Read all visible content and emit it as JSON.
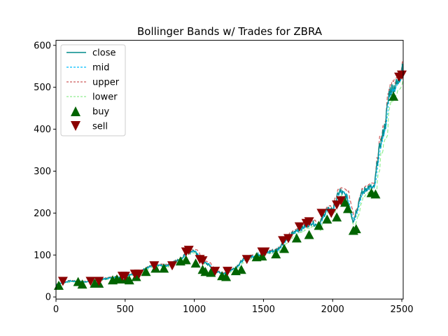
{
  "chart_data": {
    "type": "line",
    "title": "Bollinger Bands w/ Trades for ZBRA",
    "xlabel": "",
    "ylabel": "",
    "xlim": [
      0,
      2510
    ],
    "ylim": [
      -5,
      612
    ],
    "x_ticks": [
      0,
      500,
      1000,
      1500,
      2000,
      2500
    ],
    "y_ticks": [
      0,
      100,
      200,
      300,
      400,
      500,
      600
    ],
    "legend_position": "upper-left",
    "anchors": [
      [
        0,
        30
      ],
      [
        100,
        38
      ],
      [
        200,
        36
      ],
      [
        300,
        40
      ],
      [
        400,
        46
      ],
      [
        500,
        50
      ],
      [
        600,
        60
      ],
      [
        700,
        75
      ],
      [
        800,
        75
      ],
      [
        900,
        90
      ],
      [
        950,
        108
      ],
      [
        1000,
        110
      ],
      [
        1050,
        85
      ],
      [
        1100,
        78
      ],
      [
        1150,
        62
      ],
      [
        1200,
        55
      ],
      [
        1250,
        62
      ],
      [
        1300,
        70
      ],
      [
        1350,
        88
      ],
      [
        1400,
        95
      ],
      [
        1450,
        100
      ],
      [
        1500,
        104
      ],
      [
        1550,
        108
      ],
      [
        1600,
        112
      ],
      [
        1650,
        132
      ],
      [
        1700,
        148
      ],
      [
        1750,
        160
      ],
      [
        1800,
        168
      ],
      [
        1850,
        178
      ],
      [
        1900,
        168
      ],
      [
        1950,
        205
      ],
      [
        2000,
        210
      ],
      [
        2050,
        252
      ],
      [
        2100,
        240
      ],
      [
        2150,
        180
      ],
      [
        2200,
        240
      ],
      [
        2250,
        262
      ],
      [
        2300,
        258
      ],
      [
        2330,
        340
      ],
      [
        2350,
        370
      ],
      [
        2380,
        410
      ],
      [
        2410,
        490
      ],
      [
        2440,
        500
      ],
      [
        2470,
        508
      ],
      [
        2500,
        548
      ],
      [
        2510,
        560
      ]
    ],
    "series": [
      {
        "name": "close",
        "color": "#008b8b",
        "style": "solid"
      },
      {
        "name": "mid",
        "color": "#00bfff",
        "style": "dashed"
      },
      {
        "name": "upper",
        "color": "#cd5c5c",
        "style": "dashed"
      },
      {
        "name": "lower",
        "color": "#90ee90",
        "style": "dashed"
      }
    ],
    "buy_color": "#006400",
    "sell_color": "#8b0000",
    "buy_trades": [
      [
        20,
        27
      ],
      [
        160,
        36
      ],
      [
        190,
        30
      ],
      [
        280,
        32
      ],
      [
        310,
        32
      ],
      [
        410,
        40
      ],
      [
        440,
        42
      ],
      [
        470,
        42
      ],
      [
        510,
        42
      ],
      [
        530,
        40
      ],
      [
        580,
        48
      ],
      [
        650,
        60
      ],
      [
        720,
        68
      ],
      [
        780,
        68
      ],
      [
        900,
        85
      ],
      [
        940,
        88
      ],
      [
        1010,
        80
      ],
      [
        1060,
        65
      ],
      [
        1080,
        60
      ],
      [
        1120,
        58
      ],
      [
        1200,
        50
      ],
      [
        1230,
        48
      ],
      [
        1300,
        62
      ],
      [
        1340,
        65
      ],
      [
        1450,
        95
      ],
      [
        1490,
        97
      ],
      [
        1590,
        102
      ],
      [
        1650,
        115
      ],
      [
        1740,
        140
      ],
      [
        1830,
        148
      ],
      [
        1900,
        170
      ],
      [
        1960,
        185
      ],
      [
        2030,
        190
      ],
      [
        2090,
        225
      ],
      [
        2110,
        210
      ],
      [
        2150,
        158
      ],
      [
        2170,
        162
      ],
      [
        2280,
        248
      ],
      [
        2310,
        245
      ],
      [
        2440,
        478
      ]
    ],
    "sell_trades": [
      [
        50,
        38
      ],
      [
        250,
        38
      ],
      [
        310,
        38
      ],
      [
        480,
        50
      ],
      [
        500,
        50
      ],
      [
        570,
        55
      ],
      [
        600,
        55
      ],
      [
        710,
        75
      ],
      [
        840,
        75
      ],
      [
        940,
        108
      ],
      [
        960,
        112
      ],
      [
        1040,
        90
      ],
      [
        1060,
        87
      ],
      [
        1150,
        62
      ],
      [
        1240,
        62
      ],
      [
        1380,
        90
      ],
      [
        1490,
        108
      ],
      [
        1510,
        108
      ],
      [
        1640,
        135
      ],
      [
        1680,
        140
      ],
      [
        1760,
        168
      ],
      [
        1810,
        176
      ],
      [
        1830,
        180
      ],
      [
        1920,
        200
      ],
      [
        1990,
        200
      ],
      [
        2030,
        220
      ],
      [
        2060,
        230
      ],
      [
        2480,
        525
      ],
      [
        2500,
        530
      ]
    ]
  }
}
